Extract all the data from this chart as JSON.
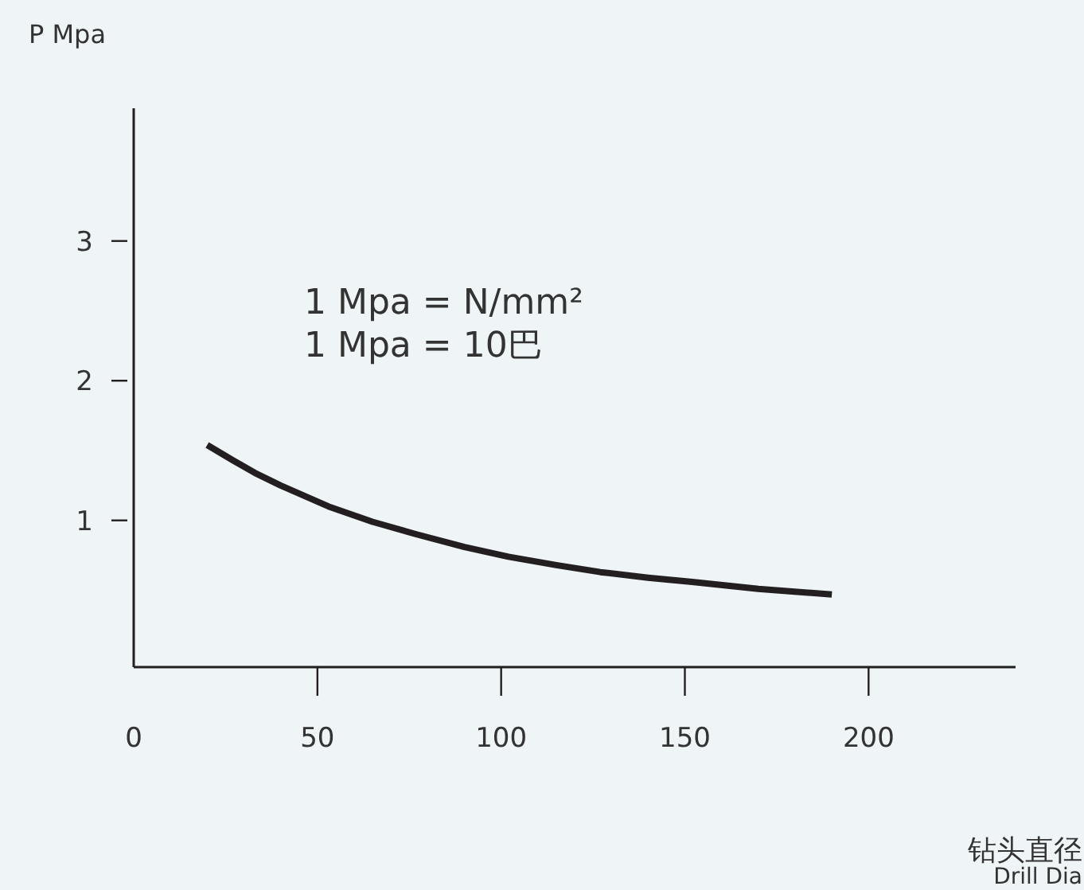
{
  "chart_data": {
    "type": "line",
    "ylabel": "P Mpa",
    "xlabel": "钻头直径\nDrill Dia",
    "annotations": [
      "1 Mpa = N/mm²",
      "1 Mpa = 10巴"
    ],
    "x": [
      20,
      27,
      33,
      40,
      53,
      65,
      77,
      90,
      102,
      115,
      127,
      140,
      152,
      170,
      190
    ],
    "series": [
      {
        "color": "#231f20",
        "values": [
          1.54,
          1.43,
          1.34,
          1.25,
          1.1,
          0.99,
          0.9,
          0.81,
          0.74,
          0.68,
          0.63,
          0.59,
          0.56,
          0.51,
          0.47
        ]
      }
    ],
    "xlim": [
      0,
      240
    ],
    "ylim": [
      -0.05,
      3.95
    ],
    "xticks": [
      0,
      50,
      100,
      150,
      200
    ],
    "yticks": [
      1,
      2,
      3
    ],
    "grid": false,
    "marker": "none",
    "line_style": "solid"
  }
}
